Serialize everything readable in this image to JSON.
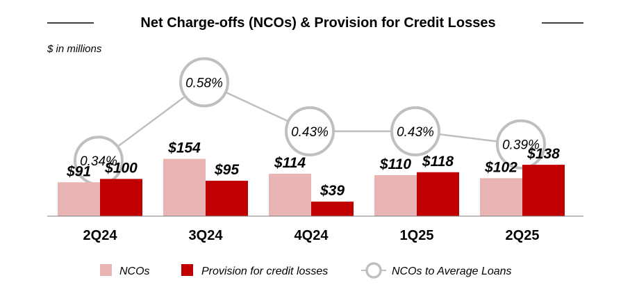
{
  "chart_data": {
    "type": "bar",
    "title": "Net Charge-offs (NCOs) & Provision for Credit Losses",
    "unit_note": "$ in millions",
    "categories": [
      "2Q24",
      "3Q24",
      "4Q24",
      "1Q25",
      "2Q25"
    ],
    "series": [
      {
        "name": "NCOs",
        "values": [
          91,
          154,
          114,
          110,
          102
        ],
        "labels": [
          "$91",
          "$154",
          "$114",
          "$110",
          "$102"
        ],
        "color": "#e8b4b4"
      },
      {
        "name": "Provision for credit losses",
        "values": [
          100,
          95,
          39,
          118,
          138
        ],
        "labels": [
          "$100",
          "$95",
          "$39",
          "$118",
          "$138"
        ],
        "color": "#c00000"
      }
    ],
    "line_series": {
      "name": "NCOs to Average Loans",
      "type": "line",
      "values": [
        0.34,
        0.58,
        0.43,
        0.43,
        0.39
      ],
      "labels": [
        "0.34%",
        "0.58%",
        "0.43%",
        "0.43%",
        "0.39%"
      ],
      "color": "#bfbfbf"
    },
    "ylim": [
      0,
      160
    ],
    "grid": false,
    "legend_position": "bottom"
  }
}
